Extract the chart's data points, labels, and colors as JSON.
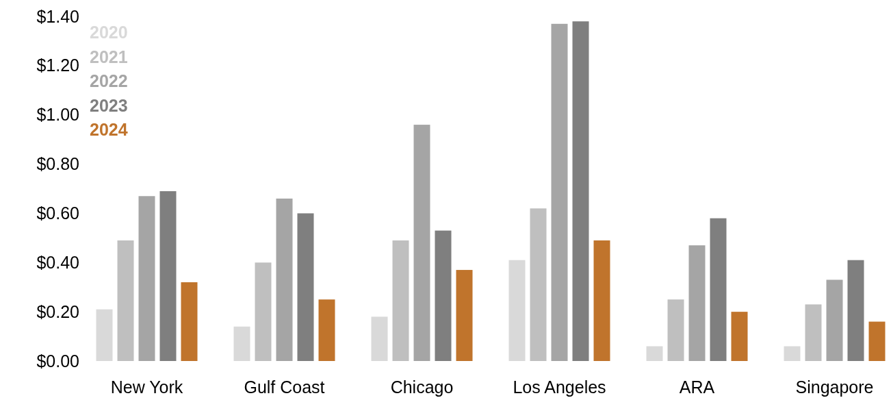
{
  "chart_data": {
    "type": "bar",
    "categories": [
      "New York",
      "Gulf Coast",
      "Chicago",
      "Los Angeles",
      "ARA",
      "Singapore"
    ],
    "series": [
      {
        "name": "2020",
        "color": "#d9d9d9",
        "values": [
          0.21,
          0.14,
          0.18,
          0.41,
          0.06,
          0.06
        ]
      },
      {
        "name": "2021",
        "color": "#bfbfbf",
        "values": [
          0.49,
          0.4,
          0.49,
          0.62,
          0.25,
          0.23
        ]
      },
      {
        "name": "2022",
        "color": "#a5a5a5",
        "values": [
          0.67,
          0.66,
          0.96,
          1.37,
          0.47,
          0.33
        ]
      },
      {
        "name": "2023",
        "color": "#7f7f7f",
        "values": [
          0.69,
          0.6,
          0.53,
          1.38,
          0.58,
          0.41
        ]
      },
      {
        "name": "2024",
        "color": "#c0742c",
        "values": [
          0.32,
          0.25,
          0.37,
          0.49,
          0.2,
          0.16
        ]
      }
    ],
    "ylim": [
      0,
      1.4
    ],
    "yticks": [
      {
        "value": 0,
        "label": "$0.00"
      },
      {
        "value": 0.2,
        "label": "$0.20"
      },
      {
        "value": 0.4,
        "label": "$0.40"
      },
      {
        "value": 0.6,
        "label": "$0.60"
      },
      {
        "value": 0.8,
        "label": "$0.80"
      },
      {
        "value": 1.0,
        "label": "$1.00"
      },
      {
        "value": 1.2,
        "label": "$1.20"
      },
      {
        "value": 1.4,
        "label": "$1.40"
      }
    ],
    "legend": "top left",
    "grid": false
  }
}
